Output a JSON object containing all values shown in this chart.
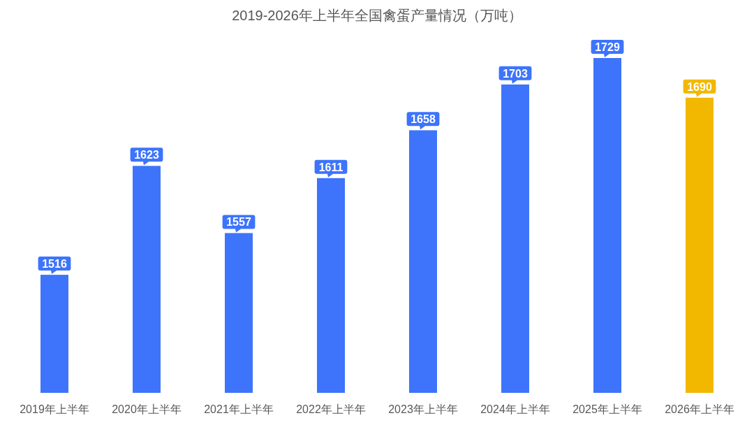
{
  "chart_data": {
    "type": "bar",
    "title": "2019-2026年上半年全国禽蛋产量情况（万吨）",
    "categories": [
      "2019年上半年",
      "2020年上半年",
      "2021年上半年",
      "2022年上半年",
      "2023年上半年",
      "2024年上半年",
      "2025年上半年",
      "2026年上半年"
    ],
    "values": [
      1516,
      1623,
      1557,
      1611,
      1658,
      1703,
      1729,
      1690
    ],
    "colors": [
      "#3d74fb",
      "#3d74fb",
      "#3d74fb",
      "#3d74fb",
      "#3d74fb",
      "#3d74fb",
      "#3d74fb",
      "#f2b800"
    ],
    "ylim": [
      1400,
      1729
    ],
    "data_labels": true
  }
}
